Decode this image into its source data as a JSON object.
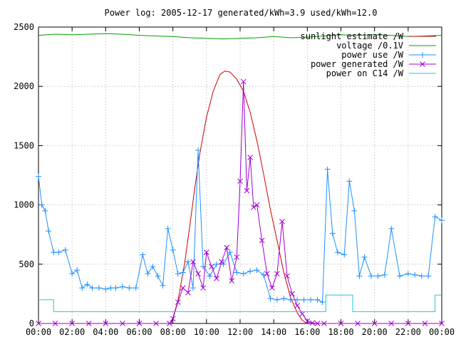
{
  "chart_data": {
    "type": "line",
    "title": "Power log: 2005-12-17 generated/kWh=3.9 used/kWh=12.0",
    "xlabel": "",
    "ylabel": "",
    "xlim": [
      0,
      24
    ],
    "ylim": [
      0,
      2500
    ],
    "grid": true,
    "legend_position": "top-right",
    "x_ticks": [
      "00:00",
      "02:00",
      "04:00",
      "06:00",
      "08:00",
      "10:00",
      "12:00",
      "14:00",
      "16:00",
      "18:00",
      "20:00",
      "22:00",
      "00:00"
    ],
    "y_ticks": [
      "0",
      "500",
      "1000",
      "1500",
      "2000",
      "2500"
    ],
    "series": [
      {
        "name": "sunlight estimate /W",
        "color": "#cc0000",
        "marker": "none",
        "x": [
          7.9,
          8.3,
          8.7,
          9.0,
          9.3,
          9.6,
          10.0,
          10.4,
          10.8,
          11.1,
          11.4,
          11.8,
          12.2,
          12.6,
          13.0,
          13.4,
          13.8,
          14.2,
          14.6,
          15.0,
          15.4,
          15.7,
          16.0
        ],
        "y": [
          0,
          190,
          510,
          820,
          1140,
          1430,
          1740,
          1960,
          2100,
          2130,
          2120,
          2060,
          1960,
          1780,
          1540,
          1260,
          960,
          700,
          430,
          220,
          90,
          25,
          0
        ]
      },
      {
        "name": "voltage /0.1V",
        "color": "#00a000",
        "marker": "none",
        "x": [
          0,
          1,
          2,
          3,
          4,
          5,
          6,
          7,
          8,
          9,
          10,
          11,
          12,
          13,
          14,
          15,
          16,
          17,
          18,
          19,
          20,
          21,
          22,
          23,
          24
        ],
        "y": [
          2430,
          2440,
          2435,
          2440,
          2445,
          2440,
          2430,
          2425,
          2420,
          2410,
          2405,
          2400,
          2405,
          2410,
          2420,
          2410,
          2415,
          2425,
          2435,
          2430,
          2435,
          2430,
          2420,
          2425,
          2430
        ]
      },
      {
        "name": "power use /W",
        "color": "#1e90ff",
        "marker": "+",
        "x": [
          0,
          0.2,
          0.4,
          0.6,
          0.9,
          1.2,
          1.6,
          2.0,
          2.3,
          2.6,
          2.9,
          3.2,
          3.6,
          4.0,
          4.3,
          4.6,
          5.0,
          5.4,
          5.8,
          6.2,
          6.5,
          6.8,
          7.1,
          7.4,
          7.7,
          8.0,
          8.3,
          8.6,
          8.9,
          9.2,
          9.5,
          9.8,
          10.2,
          10.6,
          11.0,
          11.4,
          11.8,
          12.2,
          12.6,
          13.0,
          13.4,
          13.8,
          14.2,
          14.6,
          15.0,
          15.4,
          15.8,
          16.2,
          16.6,
          16.9,
          17.2,
          17.5,
          17.8,
          18.2,
          18.5,
          18.8,
          19.1,
          19.4,
          19.8,
          20.2,
          20.6,
          21.0,
          21.5,
          22.0,
          22.4,
          22.8,
          23.2,
          23.6,
          24.0
        ],
        "y": [
          1240,
          1000,
          950,
          780,
          600,
          600,
          620,
          420,
          450,
          300,
          330,
          300,
          300,
          290,
          300,
          300,
          310,
          300,
          300,
          580,
          420,
          480,
          400,
          320,
          800,
          620,
          420,
          430,
          520,
          300,
          1460,
          480,
          400,
          500,
          500,
          600,
          430,
          420,
          440,
          450,
          410,
          210,
          200,
          210,
          200,
          200,
          200,
          200,
          200,
          180,
          1300,
          760,
          600,
          580,
          1200,
          950,
          400,
          560,
          400,
          400,
          410,
          800,
          400,
          420,
          410,
          400,
          400,
          900,
          870
        ]
      },
      {
        "name": "power generated /W",
        "color": "#a000d0",
        "marker": "x",
        "x": [
          0,
          1,
          2,
          3,
          4,
          5,
          6,
          7,
          7.8,
          8.0,
          8.3,
          8.6,
          8.9,
          9.2,
          9.5,
          9.8,
          10.0,
          10.3,
          10.6,
          10.9,
          11.2,
          11.5,
          11.8,
          12.0,
          12.2,
          12.4,
          12.6,
          12.8,
          13.0,
          13.3,
          13.6,
          13.9,
          14.2,
          14.5,
          14.8,
          15.1,
          15.4,
          15.7,
          16.0,
          16.3,
          16.6,
          17,
          18,
          19,
          20,
          21,
          22,
          23,
          24
        ],
        "y": [
          0,
          0,
          0,
          0,
          0,
          0,
          0,
          0,
          0,
          40,
          180,
          300,
          260,
          520,
          420,
          300,
          600,
          480,
          380,
          520,
          640,
          360,
          560,
          1200,
          2040,
          1120,
          1400,
          980,
          1000,
          700,
          420,
          300,
          420,
          860,
          400,
          250,
          150,
          80,
          20,
          5,
          0,
          0,
          0,
          0,
          0,
          0,
          0,
          0,
          0
        ]
      },
      {
        "name": "power on C14 /W",
        "color": "#20c8c8",
        "marker": "none",
        "x": [
          0,
          0.9,
          0.9,
          17.1,
          17.1,
          18.7,
          18.7,
          23.6,
          23.6,
          24.0
        ],
        "y": [
          200,
          200,
          100,
          100,
          240,
          240,
          100,
          100,
          240,
          240
        ]
      }
    ]
  }
}
